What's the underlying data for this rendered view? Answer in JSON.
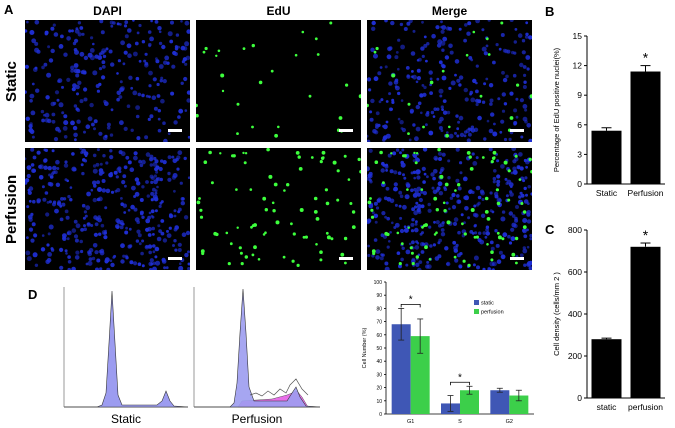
{
  "panel_labels": {
    "A": "A",
    "B": "B",
    "C": "C",
    "D": "D"
  },
  "columns": [
    "DAPI",
    "EdU",
    "Merge"
  ],
  "rows": [
    "Static",
    "Perfusion"
  ],
  "colors": {
    "dapi_blue": "#1f2fd6",
    "edu_green": "#3dff3d",
    "bar_black": "#000000",
    "cycle_static": "#3f57b5",
    "cycle_perfusion": "#3ccf4a",
    "histogram_fill": "#9c9cf0",
    "histogram_pink": "#e86fe8"
  },
  "flow": {
    "captions": [
      "Static",
      "Perfusion"
    ]
  },
  "chart_data": [
    {
      "type": "bar",
      "panel": "B",
      "categories": [
        "Static",
        "Perfusion"
      ],
      "values": [
        5.4,
        11.4
      ],
      "errors": [
        0.3,
        0.6
      ],
      "ylabel": "Percentage of EdU positive nuclei(%)",
      "ylim": [
        0,
        15
      ],
      "yticks": [
        "0",
        "3",
        "6",
        "9",
        "12",
        "15"
      ],
      "significance": "*"
    },
    {
      "type": "bar",
      "panel": "C",
      "categories": [
        "static",
        "perfusion"
      ],
      "values": [
        280,
        720
      ],
      "errors": [
        5,
        18
      ],
      "ylabel": "Cell density (cells/mm 2 )",
      "ylim": [
        0,
        800
      ],
      "yticks": [
        "0",
        "200",
        "400",
        "600",
        "800"
      ],
      "significance": "*"
    },
    {
      "type": "bar",
      "panel": "D",
      "categories": [
        "G1",
        "S",
        "G2"
      ],
      "series": [
        {
          "name": "static",
          "values": [
            68,
            8,
            18
          ],
          "errors": [
            12,
            6,
            1.5
          ]
        },
        {
          "name": "perfusion",
          "values": [
            59,
            18,
            14
          ],
          "errors": [
            13,
            3,
            4
          ]
        }
      ],
      "ylabel": "Cell Number (%)",
      "ylim": [
        0,
        100
      ],
      "yticks": [
        "0",
        "10",
        "20",
        "30",
        "40",
        "50",
        "60",
        "70",
        "80",
        "90",
        "100"
      ],
      "significance": [
        "*",
        "*"
      ],
      "legend": "top-right"
    }
  ]
}
